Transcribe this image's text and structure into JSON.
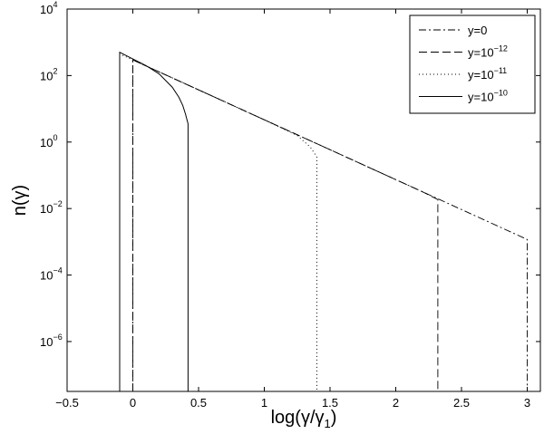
{
  "chart_data": {
    "type": "line",
    "xlabel": {
      "main": "log(γ/γ",
      "sub": "1",
      "close": ")"
    },
    "ylabel": "n(γ)",
    "xlim": [
      -0.5,
      3.1
    ],
    "ylog": true,
    "ylim_exp": [
      -7.5,
      4
    ],
    "x_ticks": [
      "−0.5",
      "0",
      "0.5",
      "1",
      "1.5",
      "2",
      "2.5",
      "3"
    ],
    "x_tick_values": [
      -0.5,
      0,
      0.5,
      1,
      1.5,
      2,
      2.5,
      3
    ],
    "y_tick_base": "10",
    "y_tick_exponents": [
      "4",
      "2",
      "0",
      "−2",
      "−4",
      "−6"
    ],
    "y_tick_values": [
      4,
      2,
      0,
      -2,
      -4,
      -6
    ],
    "legend_position": "top-right",
    "series": [
      {
        "name": "y=0",
        "name_base": "y=0",
        "name_exp": "",
        "dash": "8,3,2,3",
        "stroke_width": 0.9,
        "points": [
          [
            0,
            -7.5
          ],
          [
            0,
            2.47
          ],
          [
            0.5,
            1.57
          ],
          [
            1.0,
            0.67
          ],
          [
            1.5,
            -0.23
          ],
          [
            2.0,
            -1.13
          ],
          [
            2.5,
            -2.03
          ],
          [
            3.0,
            -2.93
          ],
          [
            3.0,
            -7.5
          ]
        ]
      },
      {
        "name": "y=10−12",
        "name_base": "y=10",
        "name_exp": "−12",
        "dash": "9,4",
        "stroke_width": 0.9,
        "points": [
          [
            0,
            -7.5
          ],
          [
            0,
            2.47
          ],
          [
            0.5,
            1.57
          ],
          [
            1.0,
            0.67
          ],
          [
            1.5,
            -0.23
          ],
          [
            2.0,
            -1.13
          ],
          [
            2.2,
            -1.49
          ],
          [
            2.32,
            -1.73
          ],
          [
            2.32,
            -7.5
          ]
        ]
      },
      {
        "name": "y=10−11",
        "name_base": "y=10",
        "name_exp": "−11",
        "dash": "1,3",
        "stroke_width": 1.0,
        "points": [
          [
            -0.1,
            -7.5
          ],
          [
            -0.1,
            2.65
          ],
          [
            0.5,
            1.57
          ],
          [
            1.0,
            0.67
          ],
          [
            1.25,
            0.2
          ],
          [
            1.35,
            -0.15
          ],
          [
            1.4,
            -0.45
          ],
          [
            1.4,
            -7.5
          ]
        ]
      },
      {
        "name": "y=10−10",
        "name_base": "y=10",
        "name_exp": "−10",
        "dash": "",
        "stroke_width": 1.0,
        "points": [
          [
            -0.1,
            -7.5
          ],
          [
            -0.1,
            2.7
          ],
          [
            0.1,
            2.3
          ],
          [
            0.2,
            2.05
          ],
          [
            0.3,
            1.65
          ],
          [
            0.35,
            1.35
          ],
          [
            0.38,
            1.1
          ],
          [
            0.4,
            0.85
          ],
          [
            0.42,
            0.55
          ],
          [
            0.42,
            -7.5
          ]
        ]
      }
    ]
  }
}
